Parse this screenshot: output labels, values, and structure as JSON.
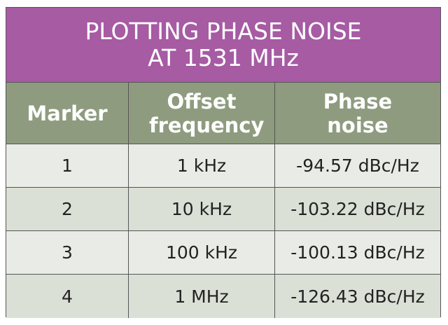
{
  "header": {
    "title_lines": [
      "PLOTTING PHASE NOISE",
      "AT 1531 MHz"
    ]
  },
  "table": {
    "columns": [
      "Marker",
      "Offset frequency",
      "Phase noise"
    ],
    "rows": [
      [
        "1",
        "1 kHz",
        "-94.57 dBc/Hz"
      ],
      [
        "2",
        "10 kHz",
        "-103.22 dBc/Hz"
      ],
      [
        "3",
        "100 kHz",
        "-100.13 dBc/Hz"
      ],
      [
        "4",
        "1 MHz",
        "-126.43 dBc/Hz"
      ]
    ]
  }
}
